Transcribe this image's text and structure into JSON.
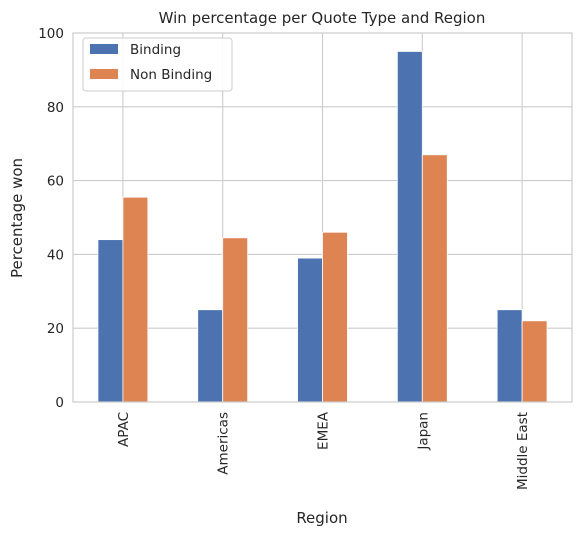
{
  "chart_data": {
    "type": "bar",
    "title": "Win percentage per Quote Type and Region",
    "xlabel": "Region",
    "ylabel": "Percentage won",
    "categories": [
      "APAC",
      "Americas",
      "EMEA",
      "Japan",
      "Middle East"
    ],
    "series": [
      {
        "name": "Binding",
        "values": [
          44,
          25,
          39,
          95,
          25
        ],
        "color": "#4c72b0"
      },
      {
        "name": "Non Binding",
        "values": [
          55.5,
          44.5,
          46,
          67,
          22
        ],
        "color": "#dd8452"
      }
    ],
    "ylim": [
      0,
      100
    ],
    "yticks": [
      0,
      20,
      40,
      60,
      80,
      100
    ],
    "grid": true,
    "legend_position": "top-left",
    "x_tick_rotation": "vertical"
  }
}
